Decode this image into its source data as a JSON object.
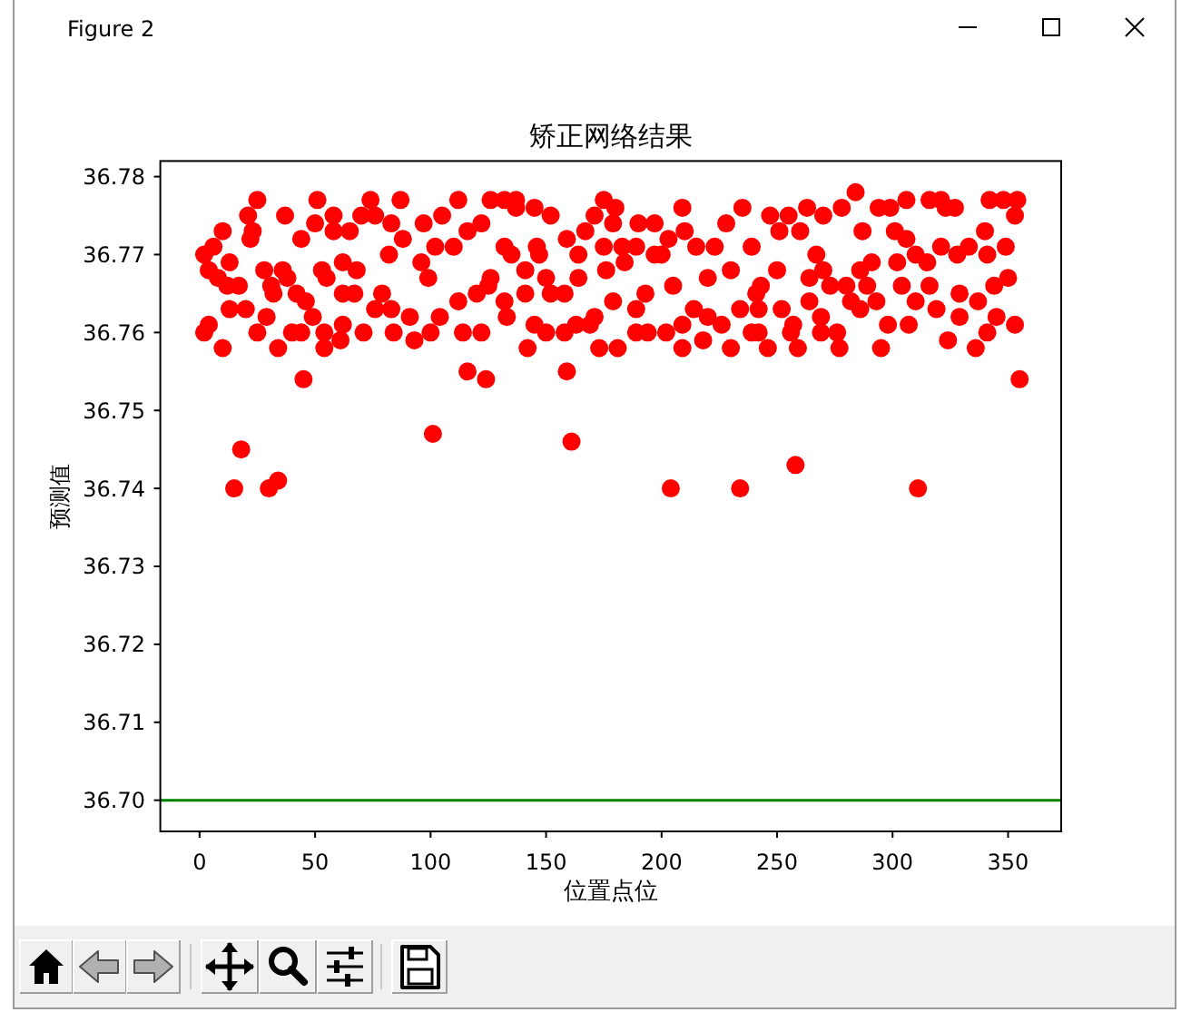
{
  "chart_data": {
    "type": "scatter",
    "title": "矫正网络结果",
    "xlabel": "位置点位",
    "ylabel": "预测值",
    "x": [
      2,
      2,
      4,
      4,
      6,
      8,
      10,
      10,
      12,
      13,
      13,
      15,
      17,
      18,
      20,
      21,
      22,
      23,
      25,
      25,
      28,
      29,
      30,
      31,
      32,
      34,
      34,
      36,
      37,
      38,
      40,
      42,
      44,
      44,
      45,
      46,
      49,
      50,
      51,
      53,
      54,
      54,
      55,
      58,
      58,
      61,
      62,
      62,
      62,
      65,
      67,
      68,
      70,
      71,
      74,
      76,
      76,
      79,
      82,
      83,
      83,
      84,
      87,
      88,
      91,
      93,
      96,
      97,
      99,
      100,
      101,
      102,
      104,
      105,
      110,
      112,
      112,
      114,
      116,
      116,
      120,
      122,
      122,
      124,
      125,
      126,
      126,
      132,
      132,
      132,
      133,
      135,
      137,
      137,
      141,
      141,
      142,
      145,
      145,
      146,
      147,
      150,
      150,
      152,
      152,
      158,
      158,
      159,
      159,
      161,
      163,
      164,
      164,
      167,
      169,
      171,
      171,
      173,
      175,
      175,
      176,
      179,
      179,
      180,
      181,
      183,
      184,
      189,
      189,
      189,
      190,
      193,
      194,
      197,
      197,
      200,
      202,
      203,
      204,
      205,
      209,
      209,
      209,
      210,
      214,
      215,
      218,
      220,
      220,
      223,
      226,
      228,
      230,
      230,
      234,
      234,
      235,
      239,
      239,
      241,
      242,
      242,
      243,
      246,
      247,
      250,
      251,
      252,
      255,
      256,
      257,
      258,
      259,
      260,
      263,
      264,
      264,
      267,
      269,
      269,
      270,
      270,
      273,
      276,
      277,
      278,
      280,
      282,
      284,
      286,
      286,
      287,
      289,
      291,
      293,
      294,
      295,
      298,
      299,
      301,
      302,
      304,
      306,
      306,
      307,
      310,
      310,
      311,
      315,
      316,
      316,
      319,
      321,
      321,
      323,
      324,
      327,
      328,
      329,
      329,
      333,
      336,
      337,
      340,
      341,
      341,
      342,
      344,
      345,
      348,
      349,
      350,
      353,
      353,
      354,
      355
    ],
    "values": [
      36.77,
      36.76,
      36.768,
      36.761,
      36.771,
      36.767,
      36.773,
      36.758,
      36.766,
      36.769,
      36.763,
      36.74,
      36.766,
      36.745,
      36.763,
      36.775,
      36.772,
      36.773,
      36.777,
      36.76,
      36.768,
      36.762,
      36.74,
      36.766,
      36.765,
      36.758,
      36.741,
      36.768,
      36.775,
      36.767,
      36.76,
      36.765,
      36.772,
      36.76,
      36.754,
      36.764,
      36.762,
      36.774,
      36.777,
      36.768,
      36.76,
      36.758,
      36.767,
      36.775,
      36.773,
      36.759,
      36.769,
      36.765,
      36.761,
      36.773,
      36.765,
      36.768,
      36.775,
      36.76,
      36.777,
      36.775,
      36.763,
      36.765,
      36.77,
      36.774,
      36.763,
      36.76,
      36.777,
      36.772,
      36.762,
      36.759,
      36.769,
      36.774,
      36.767,
      36.76,
      36.747,
      36.771,
      36.762,
      36.775,
      36.771,
      36.777,
      36.764,
      36.76,
      36.755,
      36.773,
      36.765,
      36.774,
      36.76,
      36.754,
      36.766,
      36.777,
      36.767,
      36.777,
      36.771,
      36.764,
      36.762,
      36.77,
      36.777,
      36.776,
      36.768,
      36.765,
      36.758,
      36.776,
      36.761,
      36.771,
      36.77,
      36.767,
      36.76,
      36.775,
      36.765,
      36.765,
      36.76,
      36.772,
      36.755,
      36.746,
      36.761,
      36.77,
      36.767,
      36.773,
      36.761,
      36.775,
      36.762,
      36.758,
      36.777,
      36.771,
      36.768,
      36.774,
      36.764,
      36.776,
      36.758,
      36.771,
      36.769,
      36.771,
      36.763,
      36.76,
      36.774,
      36.765,
      36.76,
      36.774,
      36.77,
      36.77,
      36.76,
      36.772,
      36.74,
      36.766,
      36.776,
      36.761,
      36.758,
      36.773,
      36.763,
      36.771,
      36.759,
      36.767,
      36.762,
      36.771,
      36.761,
      36.774,
      36.768,
      36.758,
      36.763,
      36.74,
      36.776,
      36.771,
      36.76,
      36.765,
      36.763,
      36.76,
      36.766,
      36.758,
      36.775,
      36.768,
      36.773,
      36.763,
      36.775,
      36.76,
      36.761,
      36.743,
      36.758,
      36.773,
      36.776,
      36.767,
      36.764,
      36.77,
      36.762,
      36.76,
      36.775,
      36.768,
      36.766,
      36.76,
      36.758,
      36.776,
      36.766,
      36.764,
      36.778,
      36.768,
      36.763,
      36.773,
      36.766,
      36.769,
      36.764,
      36.776,
      36.758,
      36.761,
      36.776,
      36.773,
      36.769,
      36.766,
      36.777,
      36.772,
      36.761,
      36.77,
      36.764,
      36.74,
      36.769,
      36.777,
      36.766,
      36.763,
      36.777,
      36.771,
      36.776,
      36.759,
      36.776,
      36.77,
      36.765,
      36.762,
      36.771,
      36.758,
      36.764,
      36.773,
      36.77,
      36.76,
      36.777,
      36.766,
      36.762,
      36.777,
      36.771,
      36.767,
      36.775,
      36.761,
      36.777,
      36.754
    ],
    "color": "#ff0000",
    "marker": "circle",
    "xlim": [
      -17,
      373
    ],
    "ylim": [
      36.696,
      36.782
    ],
    "xticks": [
      0,
      50,
      100,
      150,
      200,
      250,
      300,
      350
    ],
    "yticks": [
      {
        "value": 36.7,
        "label": "36.70"
      },
      {
        "value": 36.71,
        "label": "36.71"
      },
      {
        "value": 36.72,
        "label": "36.72"
      },
      {
        "value": 36.73,
        "label": "36.73"
      },
      {
        "value": 36.74,
        "label": "36.74"
      },
      {
        "value": 36.75,
        "label": "36.75"
      },
      {
        "value": 36.76,
        "label": "36.76"
      },
      {
        "value": 36.77,
        "label": "36.77"
      },
      {
        "value": 36.78,
        "label": "36.78"
      }
    ],
    "ref_lines": [
      {
        "axis": "y",
        "value": 36.7,
        "color": "#008000"
      }
    ],
    "annotations": [
      "Figure 2"
    ]
  }
}
